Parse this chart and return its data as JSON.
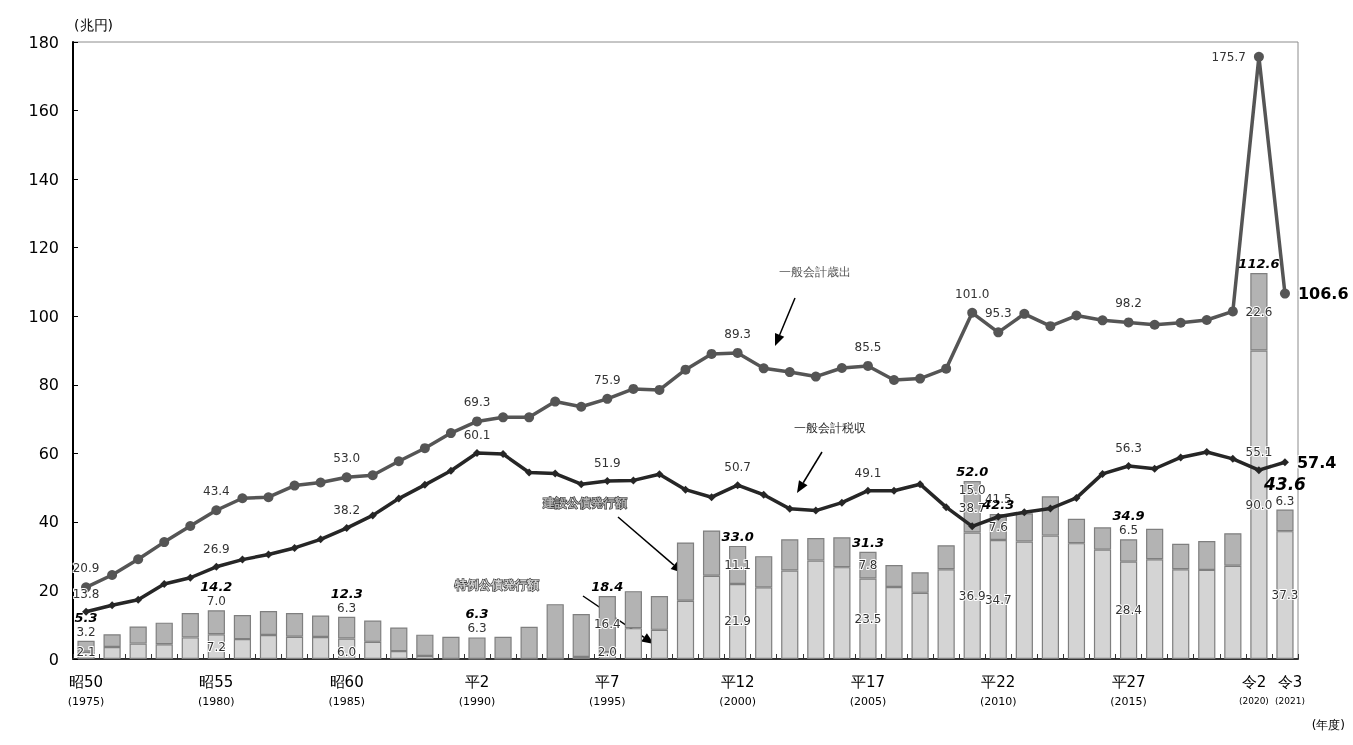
{
  "chart_data": {
    "type": "bar",
    "stacked": true,
    "xlabel": "(年度)",
    "ylabel": "(兆円)",
    "categories": [
      "昭50\n(1975)",
      null,
      null,
      null,
      null,
      "昭55\n(1980)",
      null,
      null,
      null,
      null,
      "昭60\n(1985)",
      null,
      null,
      null,
      null,
      "平2\n(1990)",
      null,
      null,
      null,
      null,
      "平7\n(1995)",
      null,
      null,
      null,
      null,
      "平12\n(2000)",
      null,
      null,
      null,
      null,
      "平17\n(2005)",
      null,
      null,
      null,
      null,
      "平22\n(2010)",
      null,
      null,
      null,
      null,
      "平27\n(2015)",
      null,
      null,
      null,
      null,
      "令2\n(2020)",
      "令3\n(2021)"
    ],
    "ylim": [
      0,
      180
    ],
    "yticks": [
      0,
      20,
      40,
      60,
      80,
      100,
      120,
      140,
      160,
      180
    ],
    "grid": false,
    "legend": false,
    "series": [
      {
        "name": "特例公債発行額",
        "color": "#d4d4d4",
        "values": [
          2.1,
          3.5,
          4.5,
          4.3,
          6.3,
          7.2,
          5.8,
          7.0,
          6.5,
          6.4,
          6.0,
          5.0,
          2.3,
          0.9,
          0,
          0,
          0,
          0,
          0,
          0.6,
          2.0,
          9.0,
          8.5,
          17.0,
          24.3,
          21.9,
          20.9,
          25.8,
          28.7,
          26.8,
          23.5,
          21.0,
          19.3,
          26.2,
          36.9,
          34.7,
          34.3,
          36.0,
          33.8,
          31.9,
          28.4,
          29.1,
          26.2,
          26.0,
          27.2,
          90.0,
          37.3
        ],
        "value_labels": [
          "2.1",
          null,
          null,
          null,
          null,
          "7.2",
          null,
          null,
          null,
          null,
          "6.0",
          null,
          null,
          null,
          null,
          null,
          null,
          null,
          null,
          null,
          "2.0",
          null,
          null,
          null,
          null,
          "21.9",
          null,
          null,
          null,
          null,
          "23.5",
          null,
          null,
          null,
          "36.9",
          "34.7",
          null,
          null,
          null,
          null,
          "28.4",
          null,
          null,
          null,
          null,
          "90.0",
          "37.3"
        ]
      },
      {
        "name": "建設公債発行額",
        "color": "#b3b3b3",
        "values": [
          3.2,
          3.7,
          5.0,
          6.3,
          7.1,
          7.0,
          7.0,
          7.0,
          6.9,
          6.3,
          6.3,
          6.2,
          6.9,
          6.2,
          6.5,
          6.3,
          6.5,
          9.4,
          16.0,
          12.5,
          16.4,
          10.8,
          9.9,
          17.0,
          13.2,
          11.1,
          9.1,
          9.1,
          6.6,
          8.7,
          7.8,
          6.4,
          6.0,
          7.0,
          15.0,
          7.6,
          8.2,
          11.5,
          7.1,
          6.5,
          6.5,
          8.9,
          7.4,
          8.4,
          9.5,
          22.6,
          6.3
        ],
        "value_labels": [
          "3.2",
          null,
          null,
          null,
          null,
          "7.0",
          null,
          null,
          null,
          null,
          "6.3",
          null,
          null,
          null,
          null,
          "6.3",
          null,
          null,
          null,
          null,
          "16.4",
          null,
          null,
          null,
          null,
          "11.1",
          null,
          null,
          null,
          null,
          "7.8",
          null,
          null,
          null,
          "15.0",
          "7.6",
          null,
          null,
          null,
          null,
          "6.5",
          null,
          null,
          null,
          null,
          "22.6",
          "6.3"
        ]
      },
      {
        "name": "一般会計歳出",
        "type": "line",
        "marker": "circle",
        "color": "#555555",
        "values": [
          20.9,
          24.5,
          29.1,
          34.1,
          38.8,
          43.4,
          46.9,
          47.2,
          50.6,
          51.5,
          53.0,
          53.6,
          57.7,
          61.5,
          65.9,
          69.3,
          70.5,
          70.5,
          75.1,
          73.6,
          75.9,
          78.8,
          78.5,
          84.4,
          89.0,
          89.3,
          84.8,
          83.7,
          82.4,
          84.9,
          85.5,
          81.4,
          81.8,
          84.7,
          101.0,
          95.3,
          100.7,
          97.1,
          100.2,
          98.8,
          98.2,
          97.5,
          98.1,
          98.9,
          101.4,
          175.7,
          106.6
        ],
        "value_labels": [
          "20.9",
          null,
          null,
          null,
          null,
          "43.4",
          null,
          null,
          null,
          null,
          "53.0",
          null,
          null,
          null,
          null,
          "69.3",
          null,
          null,
          null,
          null,
          "75.9",
          null,
          null,
          null,
          null,
          "89.3",
          null,
          null,
          null,
          null,
          "85.5",
          null,
          null,
          null,
          "101.0",
          "95.3",
          null,
          null,
          null,
          null,
          "98.2",
          null,
          null,
          null,
          null,
          "175.7",
          "106.6"
        ]
      },
      {
        "name": "一般会計税収",
        "type": "line",
        "marker": "diamond",
        "color": "#262626",
        "values": [
          13.8,
          15.7,
          17.3,
          21.9,
          23.7,
          26.9,
          29.0,
          30.5,
          32.4,
          34.9,
          38.2,
          41.9,
          46.8,
          50.8,
          54.9,
          60.1,
          59.8,
          54.4,
          54.1,
          51.0,
          51.9,
          52.1,
          53.9,
          49.4,
          47.2,
          50.7,
          47.9,
          43.8,
          43.3,
          45.6,
          49.1,
          49.1,
          51.0,
          44.3,
          38.7,
          41.5,
          42.8,
          43.9,
          47.0,
          54.0,
          56.3,
          55.5,
          58.8,
          60.4,
          58.4,
          55.1,
          57.4
        ],
        "value_labels": [
          "13.8",
          null,
          null,
          null,
          null,
          "26.9",
          null,
          null,
          null,
          null,
          "38.2",
          null,
          null,
          null,
          null,
          "60.1",
          null,
          null,
          null,
          null,
          "51.9",
          null,
          null,
          null,
          null,
          "50.7",
          null,
          null,
          null,
          null,
          "49.1",
          null,
          null,
          null,
          "38.7",
          "41.5",
          null,
          null,
          null,
          null,
          "56.3",
          null,
          null,
          null,
          null,
          "55.1",
          "57.4"
        ]
      }
    ],
    "totals": [
      "5.3",
      null,
      null,
      null,
      null,
      "14.2",
      null,
      null,
      null,
      null,
      "12.3",
      null,
      null,
      null,
      null,
      "6.3",
      null,
      null,
      null,
      null,
      "18.4",
      null,
      null,
      null,
      null,
      "33.0",
      null,
      null,
      null,
      null,
      "31.3",
      null,
      null,
      null,
      "52.0",
      "42.3",
      null,
      null,
      null,
      null,
      "34.9",
      null,
      null,
      null,
      null,
      "112.6",
      "43.6"
    ]
  }
}
